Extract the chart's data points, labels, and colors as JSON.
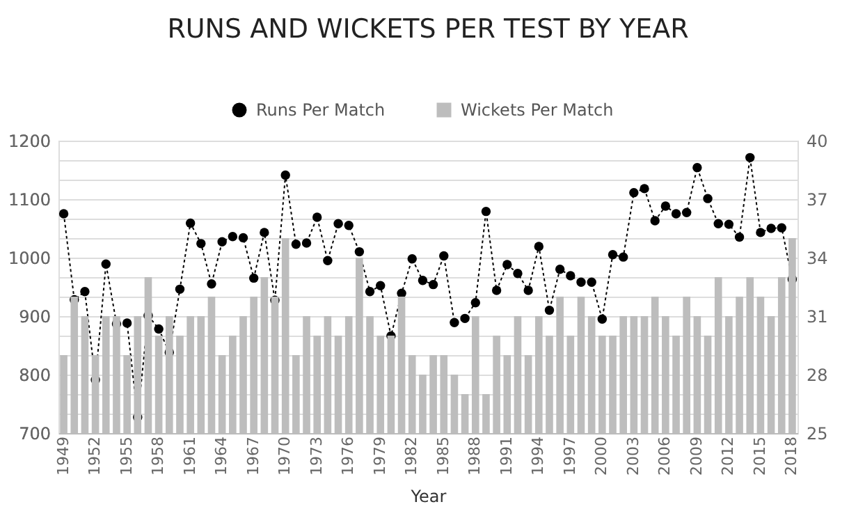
{
  "chart_data": {
    "type": "bar",
    "title": "RUNS AND WICKETS PER TEST BY YEAR",
    "xlabel": "Year",
    "categories": [
      "1949",
      null,
      null,
      "1952",
      null,
      null,
      "1955",
      null,
      null,
      "1958",
      null,
      null,
      "1961",
      null,
      null,
      "1964",
      null,
      null,
      "1967",
      null,
      null,
      "1970",
      null,
      null,
      "1973",
      null,
      null,
      "1976",
      null,
      null,
      "1979",
      null,
      null,
      "1982",
      null,
      null,
      "1985",
      null,
      null,
      "1988",
      null,
      null,
      "1991",
      null,
      null,
      "1994",
      null,
      null,
      "1997",
      null,
      null,
      "2000",
      null,
      null,
      "2003",
      null,
      null,
      "2006",
      null,
      null,
      "2009",
      null,
      null,
      "2012",
      null,
      null,
      "2015",
      null,
      null,
      "2018"
    ],
    "series": [
      {
        "name": "Runs Per Match",
        "type": "line",
        "color": "#000000",
        "marker": "circle",
        "line_style": "dotted",
        "values": [
          1075,
          928,
          942,
          791,
          989,
          887,
          888,
          727,
          901,
          878,
          838,
          946,
          1059,
          1024,
          955,
          1027,
          1036,
          1034,
          965,
          1043,
          927,
          1141,
          1023,
          1025,
          1069,
          995,
          1058,
          1055,
          1010,
          942,
          952,
          866,
          939,
          998,
          961,
          954,
          1003,
          889,
          896,
          923,
          1079,
          944,
          988,
          973,
          944,
          1019,
          910,
          980,
          969,
          958,
          958,
          895,
          1005,
          1001,
          1111,
          1118,
          1063,
          1088,
          1075,
          1077,
          1154,
          1101,
          1058,
          1057,
          1035,
          1171,
          1043,
          1050,
          1051,
          963
        ]
      },
      {
        "name": "Wickets Per Match",
        "color": "#bdbdbd",
        "axis": "y2",
        "values": [
          29,
          32,
          31,
          29,
          31,
          31,
          29,
          31,
          33,
          30,
          31,
          30,
          31,
          31,
          32,
          29,
          30,
          31,
          32,
          33,
          32,
          35,
          29,
          31,
          30,
          31,
          30,
          31,
          34,
          31,
          30,
          30,
          32,
          29,
          28,
          29,
          29,
          28,
          27,
          31,
          27,
          30,
          29,
          31,
          29,
          31,
          30,
          32,
          30,
          32,
          31,
          30,
          30,
          31,
          31,
          31,
          32,
          31,
          30,
          32,
          31,
          30,
          33,
          31,
          32,
          33,
          32,
          31,
          33,
          35
        ]
      }
    ],
    "ylim": [
      700,
      1200
    ],
    "yticks": [
      700,
      800,
      900,
      1000,
      1100,
      1200
    ],
    "y2lim": [
      25,
      40
    ],
    "y2ticks": [
      25,
      {
        "value": 26,
        "label": null
      },
      {
        "value": 27,
        "label": null
      },
      28,
      {
        "value": 29,
        "label": null
      },
      {
        "value": 30,
        "label": null
      },
      31,
      {
        "value": 32,
        "label": null
      },
      {
        "value": 33,
        "label": null
      },
      34,
      {
        "value": 35,
        "label": null
      },
      {
        "value": 36,
        "label": null
      },
      37,
      {
        "value": 38,
        "label": null
      },
      {
        "value": 39,
        "label": null
      },
      40
    ],
    "grid": true,
    "legend": "top"
  }
}
